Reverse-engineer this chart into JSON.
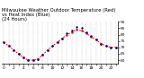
{
  "title": "Milwaukee Weather Outdoor Temperature (Red)\nvs Heat Index (Blue)\n(24 Hours)",
  "hours": [
    0,
    1,
    2,
    3,
    4,
    5,
    6,
    7,
    8,
    9,
    10,
    11,
    12,
    13,
    14,
    15,
    16,
    17,
    18,
    19,
    20,
    21,
    22,
    23
  ],
  "temperature": [
    74,
    71,
    68,
    65,
    62,
    60,
    60,
    61,
    64,
    68,
    71,
    74,
    77,
    80,
    82,
    84,
    83,
    81,
    78,
    76,
    73,
    71,
    70,
    70
  ],
  "heat_index": [
    74,
    71,
    68,
    65,
    62,
    60,
    60,
    61,
    64,
    68,
    71,
    74,
    77,
    81,
    83,
    86,
    85,
    82,
    79,
    76,
    73,
    71,
    70,
    70
  ],
  "ylim": [
    57,
    90
  ],
  "ytick_values": [
    60,
    65,
    70,
    75,
    80,
    85,
    90
  ],
  "ytick_labels": [
    "60",
    "65",
    "70",
    "75",
    "80",
    "85",
    "90"
  ],
  "xtick_values": [
    0,
    1,
    2,
    3,
    4,
    5,
    6,
    7,
    8,
    9,
    10,
    11,
    12,
    13,
    14,
    15,
    16,
    17,
    18,
    19,
    20,
    21,
    22,
    23
  ],
  "temp_color": "#ff0000",
  "hi_color": "#000099",
  "bg_color": "#ffffff",
  "grid_color": "#888888",
  "title_fontsize": 3.8,
  "tick_fontsize": 3.2,
  "line_width": 0.7,
  "marker_size": 1.5
}
